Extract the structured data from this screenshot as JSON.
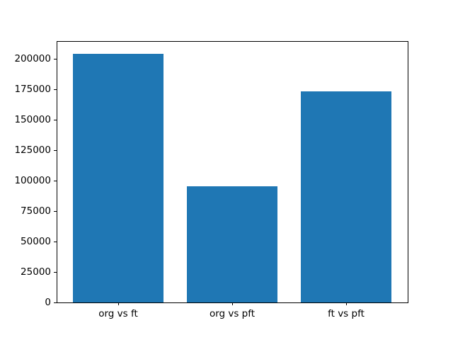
{
  "figure": {
    "background_color": "#ffffff"
  },
  "chart_data": {
    "type": "bar",
    "categories": [
      "org vs ft",
      "org vs pft",
      "ft vs pft"
    ],
    "values": [
      204000,
      95000,
      173000
    ],
    "title": "",
    "xlabel": "",
    "ylabel": "",
    "ylim": [
      0,
      214300
    ],
    "yticks": [
      0,
      25000,
      50000,
      75000,
      100000,
      125000,
      150000,
      175000,
      200000
    ],
    "bar_color": "#1f77b4",
    "axis_color": "#000000",
    "tick_label_color": "#000000",
    "bar_width_fraction": 0.8,
    "x_axis_units_span": 3.08,
    "x_first_bar_center_unit": 0.54,
    "grid": false,
    "legend": false
  }
}
